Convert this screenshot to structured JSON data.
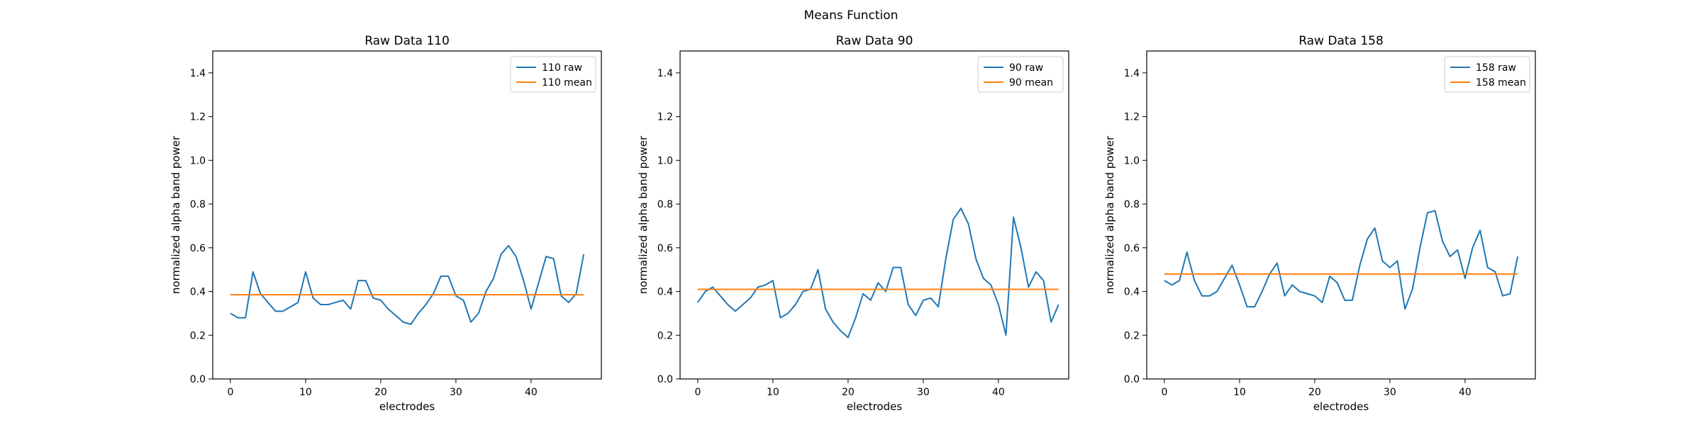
{
  "figure": {
    "title": "Means Function"
  },
  "colors": {
    "raw": "#1f77b4",
    "mean": "#ff7f0e",
    "axis": "#000000"
  },
  "chart_data": [
    {
      "type": "line",
      "title": "Raw Data 110",
      "xlabel": "electrodes",
      "ylabel": "normalized alpha band power",
      "xlim": [
        -2.35,
        49.35
      ],
      "ylim": [
        0,
        1.5
      ],
      "xticks": [
        0,
        10,
        20,
        30,
        40
      ],
      "yticks": [
        0.0,
        0.2,
        0.4,
        0.6,
        0.8,
        1.0,
        1.2,
        1.4
      ],
      "legend": "top-right",
      "series": [
        {
          "name": "110 raw",
          "values": [
            0.3,
            0.28,
            0.28,
            0.49,
            0.39,
            0.35,
            0.31,
            0.31,
            0.33,
            0.35,
            0.49,
            0.37,
            0.34,
            0.34,
            0.35,
            0.36,
            0.32,
            0.45,
            0.45,
            0.37,
            0.36,
            0.32,
            0.29,
            0.26,
            0.25,
            0.3,
            0.34,
            0.39,
            0.47,
            0.47,
            0.38,
            0.36,
            0.26,
            0.3,
            0.4,
            0.46,
            0.57,
            0.61,
            0.56,
            0.45,
            0.32,
            0.44,
            0.56,
            0.55,
            0.38,
            0.35,
            0.39,
            0.57
          ]
        },
        {
          "name": "110 mean",
          "constant": 0.385
        }
      ]
    },
    {
      "type": "line",
      "title": "Raw Data 90",
      "xlabel": "electrodes",
      "ylabel": "normalized alpha band power",
      "xlim": [
        -2.35,
        49.35
      ],
      "ylim": [
        0,
        1.5
      ],
      "xticks": [
        0,
        10,
        20,
        30,
        40
      ],
      "yticks": [
        0.0,
        0.2,
        0.4,
        0.6,
        0.8,
        1.0,
        1.2,
        1.4
      ],
      "legend": "top-right",
      "series": [
        {
          "name": "90 raw",
          "values": [
            0.35,
            0.4,
            0.42,
            0.38,
            0.34,
            0.31,
            0.34,
            0.37,
            0.42,
            0.43,
            0.45,
            0.28,
            0.3,
            0.34,
            0.4,
            0.41,
            0.5,
            0.32,
            0.26,
            0.22,
            0.19,
            0.28,
            0.39,
            0.36,
            0.44,
            0.4,
            0.51,
            0.51,
            0.34,
            0.29,
            0.36,
            0.37,
            0.33,
            0.55,
            0.73,
            0.78,
            0.71,
            0.55,
            0.46,
            0.43,
            0.34,
            0.2,
            0.74,
            0.6,
            0.42,
            0.49,
            0.45,
            0.26,
            0.34
          ]
        },
        {
          "name": "90 mean",
          "constant": 0.41
        }
      ]
    },
    {
      "type": "line",
      "title": "Raw Data 158",
      "xlabel": "electrodes",
      "ylabel": "normalized alpha band power",
      "xlim": [
        -2.35,
        49.35
      ],
      "ylim": [
        0,
        1.5
      ],
      "xticks": [
        0,
        10,
        20,
        30,
        40
      ],
      "yticks": [
        0.0,
        0.2,
        0.4,
        0.6,
        0.8,
        1.0,
        1.2,
        1.4
      ],
      "legend": "top-right",
      "series": [
        {
          "name": "158 raw",
          "values": [
            0.45,
            0.43,
            0.45,
            0.58,
            0.45,
            0.38,
            0.38,
            0.4,
            0.46,
            0.52,
            0.43,
            0.33,
            0.33,
            0.4,
            0.48,
            0.53,
            0.38,
            0.43,
            0.4,
            0.39,
            0.38,
            0.35,
            0.47,
            0.44,
            0.36,
            0.36,
            0.52,
            0.64,
            0.69,
            0.54,
            0.51,
            0.54,
            0.32,
            0.41,
            0.6,
            0.76,
            0.77,
            0.63,
            0.56,
            0.59,
            0.46,
            0.6,
            0.68,
            0.51,
            0.49,
            0.38,
            0.39,
            0.56
          ]
        },
        {
          "name": "158 mean",
          "constant": 0.48
        }
      ]
    }
  ]
}
